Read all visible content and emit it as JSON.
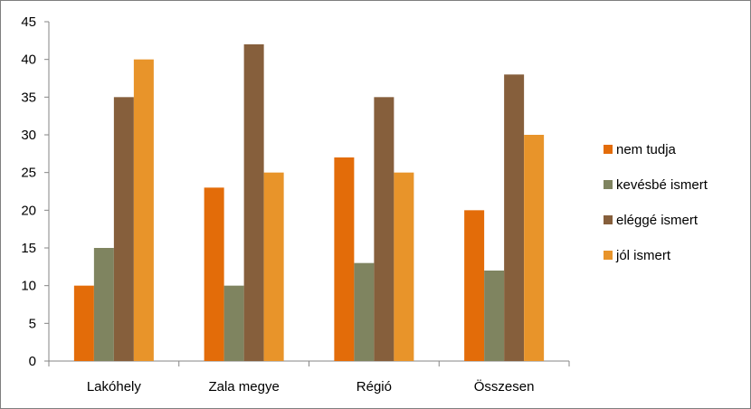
{
  "chart_data": {
    "type": "bar",
    "categories": [
      "Lakóhely",
      "Zala megye",
      "Régió",
      "Összesen"
    ],
    "series": [
      {
        "name": "nem tudja",
        "values": [
          10,
          23,
          27,
          20
        ],
        "color": "#e36c09"
      },
      {
        "name": "kevésbé ismert",
        "values": [
          15,
          10,
          13,
          12
        ],
        "color": "#7f8460"
      },
      {
        "name": "eléggé ismert",
        "values": [
          35,
          42,
          35,
          38
        ],
        "color": "#865f3c"
      },
      {
        "name": "jól ismert",
        "values": [
          40,
          25,
          25,
          30
        ],
        "color": "#e8942a"
      }
    ],
    "yticks": [
      0,
      5,
      10,
      15,
      20,
      25,
      30,
      35,
      40,
      45
    ],
    "ylim": [
      0,
      45
    ],
    "grid": false,
    "legend_position": "right"
  }
}
